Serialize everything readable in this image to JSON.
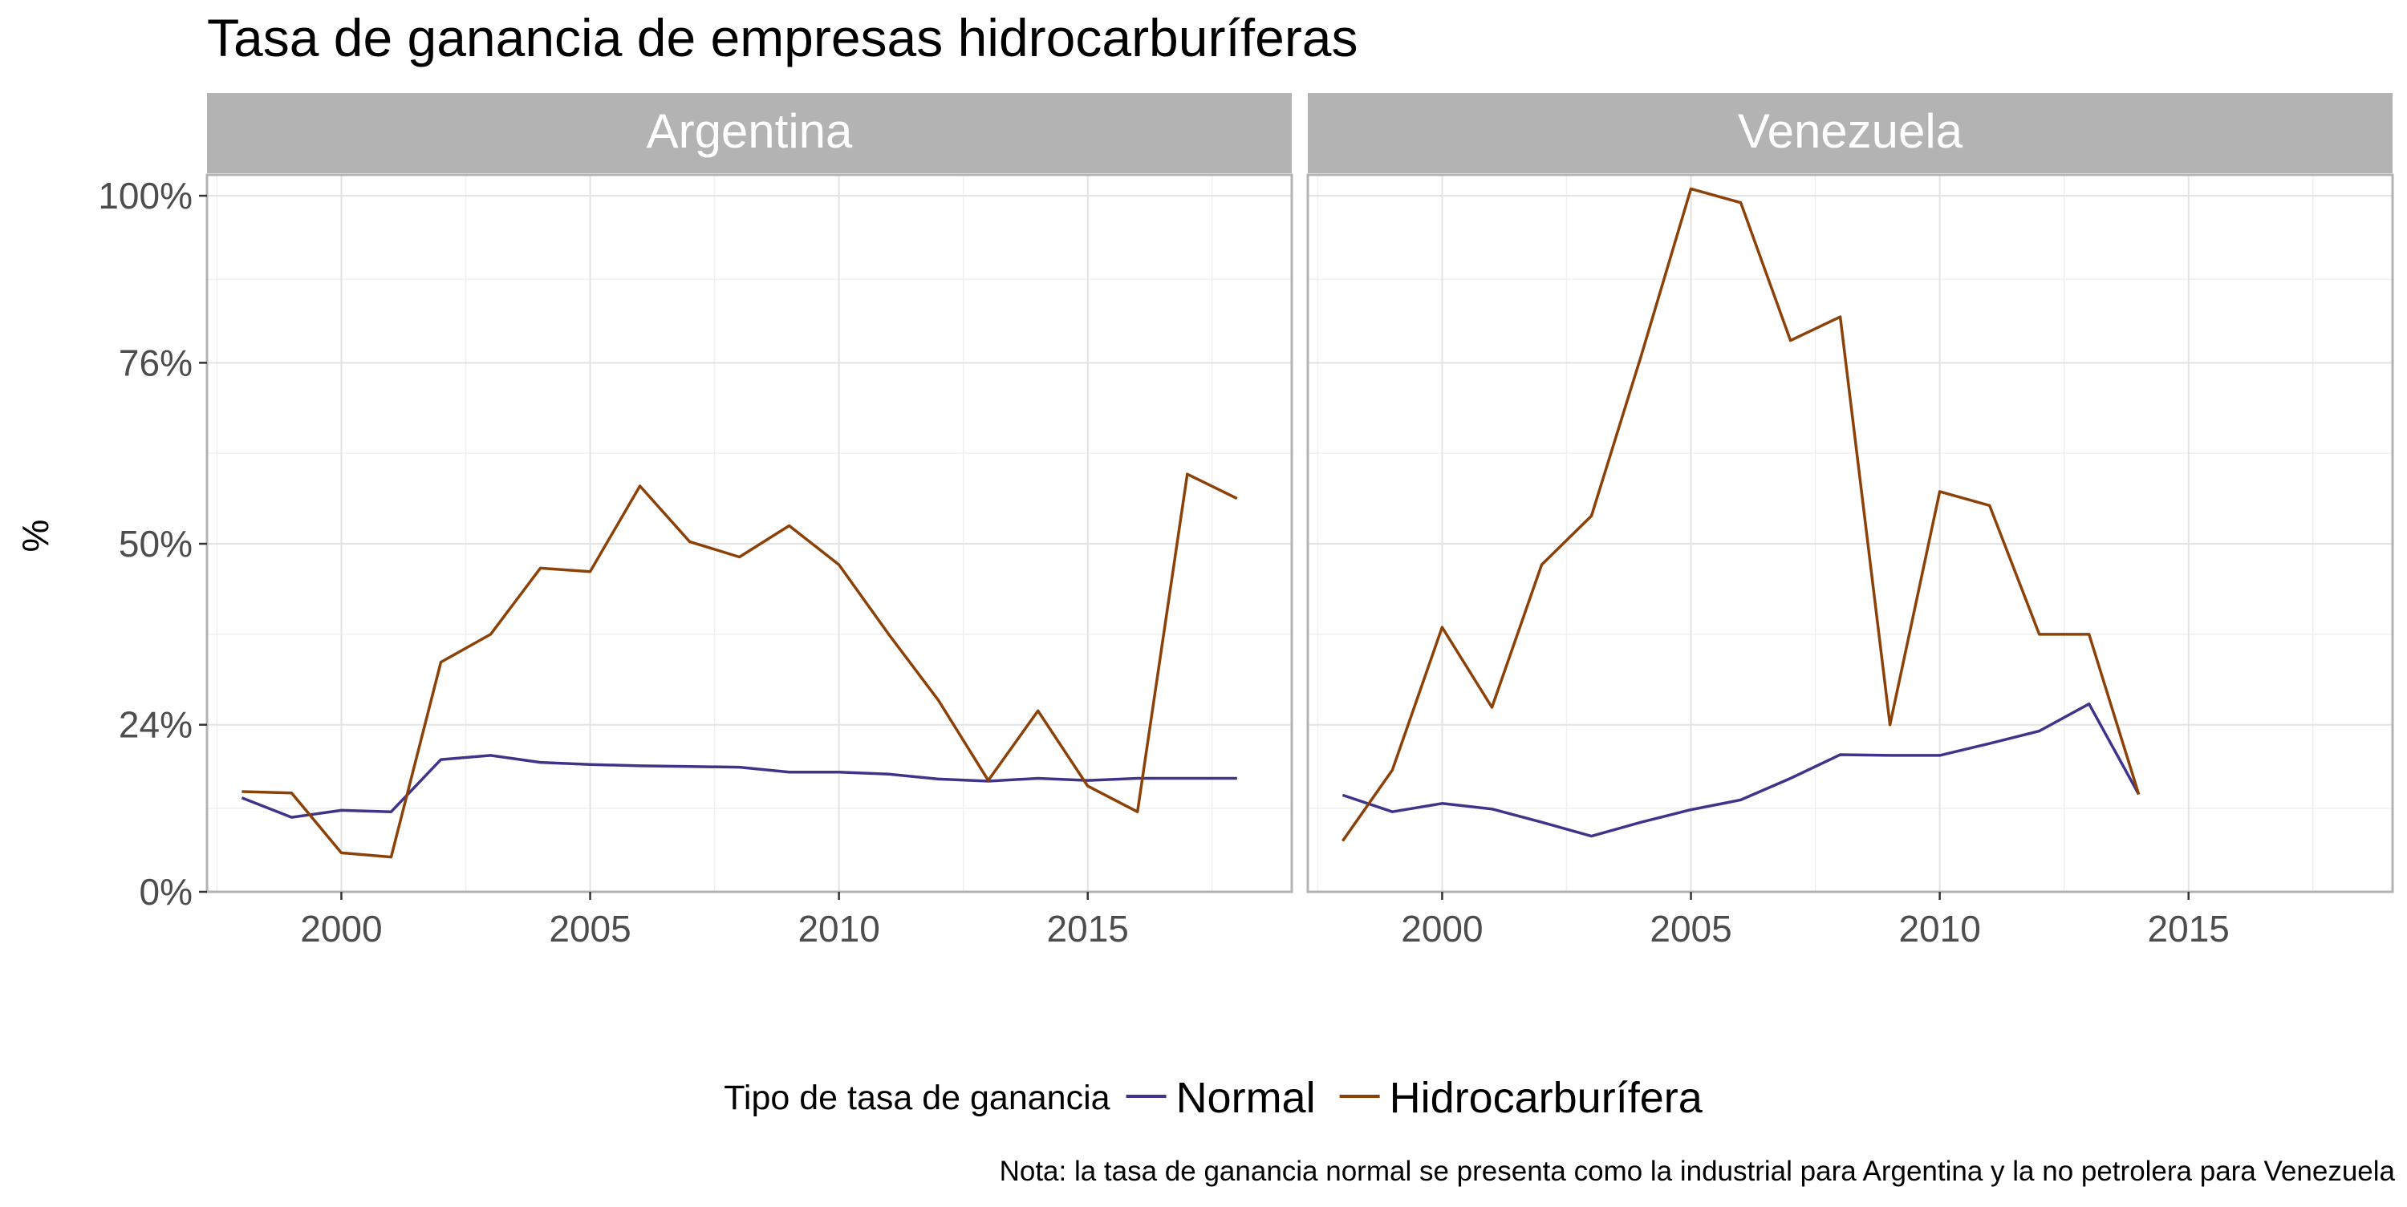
{
  "chart_data": {
    "type": "line",
    "title": "Tasa de ganancia de empresas hidrocarburíferas",
    "ylabel": "%",
    "xlabel": "",
    "ylim": [
      0,
      1.03
    ],
    "xlim": [
      1997.3,
      2019.1
    ],
    "y_ticks": [
      0,
      0.24,
      0.5,
      0.76,
      1.0
    ],
    "y_tick_labels": [
      "0%",
      "24%",
      "50%",
      "76%",
      "100%"
    ],
    "x_ticks": [
      2000,
      2005,
      2010,
      2015
    ],
    "x_tick_labels": [
      "2000",
      "2005",
      "2010",
      "2015"
    ],
    "grid": true,
    "legend": {
      "title": "Tipo de tasa de ganancia",
      "placement": "bottom",
      "entries": [
        {
          "label": "Normal",
          "color": "#3F3489"
        },
        {
          "label": "Hidrocarburífera",
          "color": "#8B4107"
        }
      ]
    },
    "caption": "Nota: la tasa de ganancia normal se presenta como la industrial para Argentina y la no petrolera para Venezuela",
    "panels": [
      {
        "name": "Argentina",
        "series": [
          {
            "name": "Normal",
            "color": "#3F3489",
            "x": [
              1998,
              1999,
              2000,
              2001,
              2002,
              2003,
              2004,
              2005,
              2006,
              2007,
              2008,
              2009,
              2010,
              2011,
              2012,
              2013,
              2014,
              2015,
              2016,
              2017,
              2018
            ],
            "y": [
              0.135,
              0.107,
              0.117,
              0.115,
              0.19,
              0.196,
              0.186,
              0.183,
              0.181,
              0.18,
              0.179,
              0.172,
              0.172,
              0.169,
              0.162,
              0.159,
              0.163,
              0.16,
              0.163,
              0.163,
              0.163
            ]
          },
          {
            "name": "Hidrocarburífera",
            "color": "#8B4107",
            "x": [
              1998,
              1999,
              2000,
              2001,
              2002,
              2003,
              2004,
              2005,
              2006,
              2007,
              2008,
              2009,
              2010,
              2011,
              2012,
              2013,
              2014,
              2015,
              2016,
              2017,
              2018
            ],
            "y": [
              0.144,
              0.142,
              0.056,
              0.05,
              0.33,
              0.37,
              0.465,
              0.46,
              0.583,
              0.503,
              0.481,
              0.526,
              0.47,
              0.37,
              0.275,
              0.16,
              0.26,
              0.152,
              0.115,
              0.6,
              0.565
            ]
          }
        ]
      },
      {
        "name": "Venezuela",
        "series": [
          {
            "name": "Normal",
            "color": "#3F3489",
            "x": [
              1998,
              1999,
              2000,
              2001,
              2002,
              2003,
              2004,
              2005,
              2006,
              2007,
              2008,
              2009,
              2010,
              2011,
              2012,
              2013,
              2014
            ],
            "y": [
              0.139,
              0.115,
              0.127,
              0.119,
              0.1,
              0.08,
              0.1,
              0.118,
              0.132,
              0.163,
              0.197,
              0.196,
              0.196,
              0.213,
              0.231,
              0.27,
              0.14
            ]
          },
          {
            "name": "Hidrocarburífera",
            "color": "#8B4107",
            "x": [
              1998,
              1999,
              2000,
              2001,
              2002,
              2003,
              2004,
              2005,
              2006,
              2007,
              2008,
              2009,
              2010,
              2011,
              2012,
              2013,
              2014
            ],
            "y": [
              0.073,
              0.175,
              0.38,
              0.265,
              0.47,
              0.54,
              0.77,
              1.01,
              0.99,
              0.792,
              0.826,
              0.24,
              0.575,
              0.555,
              0.37,
              0.37,
              0.14
            ]
          }
        ]
      }
    ]
  }
}
